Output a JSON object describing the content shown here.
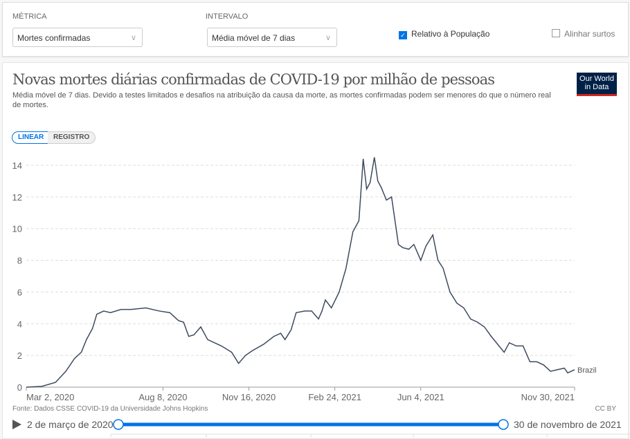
{
  "controls": {
    "metric_label": "MÉTRICA",
    "metric_value": "Mortes confirmadas",
    "interval_label": "INTERVALO",
    "interval_value": "Média móvel de 7 dias",
    "relative_label": "Relativo à População",
    "relative_checked": true,
    "align_label": "Alinhar surtos",
    "align_checked": false
  },
  "header": {
    "title": "Novas mortes diárias confirmadas de COVID-19 por milhão de pessoas",
    "subtitle_line1": "Média móvel de 7 dias. Devido a testes limitados e desafios na atribuição da causa da morte, as mortes confirmadas podem ser menores do que o número real",
    "subtitle_line2": "de mortes.",
    "logo": "Our World in Data"
  },
  "scale": {
    "linear": "LINEAR",
    "log": "REGISTRO",
    "active": "linear"
  },
  "footer": {
    "source": "Fonte: Dados CSSE COVID-19 da Universidade Johns Hopkins",
    "license": "CC BY",
    "start": "2 de março de 2020",
    "end": "30 de novembro de 2021"
  },
  "colors": {
    "line": "#3c4a5e",
    "accent": "#0073e6"
  },
  "chart_data": {
    "type": "line",
    "title": "Novas mortes diárias confirmadas de COVID-19 por milhão de pessoas",
    "xlabel": "",
    "ylabel": "",
    "ylim": [
      0,
      14.3
    ],
    "yticks": [
      0,
      2,
      4,
      6,
      8,
      10,
      12,
      14
    ],
    "xticks": [
      {
        "day": 0,
        "label": "Mar 2, 2020"
      },
      {
        "day": 159,
        "label": "Aug 8, 2020"
      },
      {
        "day": 259,
        "label": "Nov 16, 2020"
      },
      {
        "day": 359,
        "label": "Feb 24, 2021"
      },
      {
        "day": 459,
        "label": "Jun 4, 2021"
      },
      {
        "day": 638,
        "label": "Nov 30, 2021"
      }
    ],
    "x_unit": "days since Mar 2, 2020",
    "grid": true,
    "series": [
      {
        "name": "Brazil",
        "x": [
          0,
          18,
          34,
          46,
          56,
          64,
          70,
          77,
          82,
          90,
          98,
          110,
          122,
          139,
          155,
          167,
          177,
          183,
          189,
          195,
          203,
          211,
          219,
          227,
          239,
          247,
          255,
          263,
          276,
          288,
          296,
          301,
          308,
          314,
          324,
          332,
          340,
          344,
          348,
          355,
          364,
          372,
          380,
          387,
          392,
          396,
          400,
          405,
          409,
          413,
          419,
          425,
          433,
          438,
          445,
          451,
          459,
          465,
          473,
          479,
          485,
          493,
          501,
          509,
          517,
          525,
          533,
          541,
          550,
          556,
          562,
          570,
          578,
          586,
          594,
          602,
          610,
          618,
          626,
          630,
          638
        ],
        "y": [
          0,
          0.05,
          0.3,
          1,
          1.8,
          2.2,
          3,
          3.7,
          4.6,
          4.8,
          4.7,
          4.9,
          4.9,
          5.0,
          4.8,
          4.7,
          4.2,
          4.1,
          3.2,
          3.3,
          3.8,
          3.0,
          2.8,
          2.6,
          2.2,
          1.5,
          2.0,
          2.3,
          2.7,
          3.2,
          3.4,
          3.0,
          3.6,
          4.7,
          4.8,
          4.8,
          4.3,
          4.8,
          5.5,
          5.0,
          6.0,
          7.5,
          9.8,
          10.5,
          14.4,
          12.5,
          12.9,
          14.5,
          13.0,
          12.6,
          11.8,
          12.0,
          9.0,
          8.8,
          8.7,
          9.0,
          8.0,
          8.9,
          9.6,
          8.0,
          7.5,
          6.0,
          5.3,
          5.0,
          4.3,
          4.1,
          3.8,
          3.2,
          2.6,
          2.2,
          2.8,
          2.6,
          2.6,
          1.6,
          1.6,
          1.4,
          1.0,
          1.1,
          1.2,
          0.9,
          1.1
        ]
      }
    ]
  }
}
